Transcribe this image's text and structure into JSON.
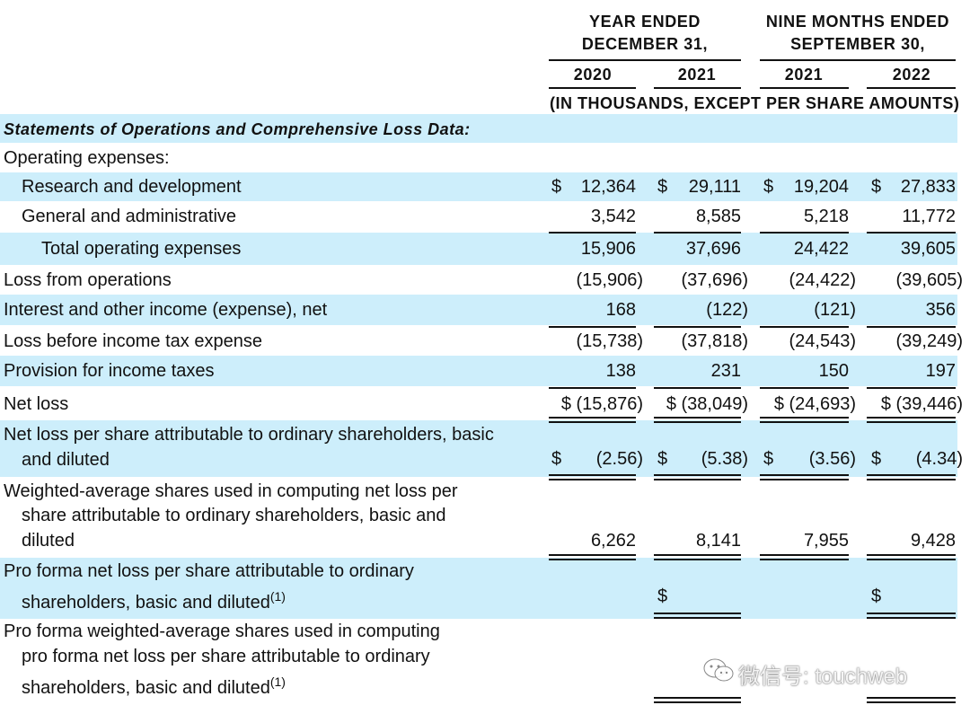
{
  "header": {
    "year_ended": "YEAR ENDED",
    "year_ended_date": "DECEMBER 31,",
    "nine_months": "NINE MONTHS ENDED",
    "nine_months_date": "SEPTEMBER 30,",
    "years": [
      "2020",
      "2021",
      "2021",
      "2022"
    ],
    "units": "(IN THOUSANDS, EXCEPT PER SHARE AMOUNTS)"
  },
  "rows": {
    "section_title": "Statements of Operations and Comprehensive Loss Data:",
    "operating_expenses": "Operating expenses:",
    "rnd": {
      "label": "Research and development",
      "cur": [
        "$",
        "$",
        "$",
        "$"
      ],
      "values": [
        "12,364",
        "29,111",
        "19,204",
        "27,833"
      ]
    },
    "gna": {
      "label": "General and administrative",
      "values": [
        "3,542",
        "8,585",
        "5,218",
        "11,772"
      ]
    },
    "total_opex": {
      "label": "Total operating expenses",
      "values": [
        "15,906",
        "37,696",
        "24,422",
        "39,605"
      ]
    },
    "loss_ops": {
      "label": "Loss from operations",
      "values": [
        "(15,906)",
        "(37,696)",
        "(24,422)",
        "(39,605)"
      ]
    },
    "interest": {
      "label": "Interest and other income (expense), net",
      "values": [
        "168",
        "(122)",
        "(121)",
        "356"
      ]
    },
    "loss_before_tax": {
      "label": "Loss before income tax expense",
      "values": [
        "(15,738)",
        "(37,818)",
        "(24,543)",
        "(39,249)"
      ]
    },
    "provision": {
      "label": "Provision for income taxes",
      "values": [
        "138",
        "231",
        "150",
        "197"
      ]
    },
    "net_loss": {
      "label": "Net loss",
      "values": [
        "$ (15,876)",
        "$ (38,049)",
        "$ (24,693)",
        "$ (39,446)"
      ]
    },
    "eps": {
      "label_line1": "Net loss per share attributable to ordinary shareholders, basic",
      "label_line2": "and diluted",
      "cur": [
        "$",
        "$",
        "$",
        "$"
      ],
      "values": [
        "(2.56)",
        "(5.38)",
        "(3.56)",
        "(4.34)"
      ]
    },
    "wavg": {
      "label_line1": "Weighted-average shares used in computing net loss per",
      "label_line2": "share attributable to ordinary shareholders, basic and",
      "label_line3": "diluted",
      "values": [
        "6,262",
        "8,141",
        "7,955",
        "9,428"
      ]
    },
    "pro_forma_eps": {
      "label_line1": "Pro forma net loss per share attributable to ordinary",
      "label_line2": "shareholders, basic and diluted",
      "footnote": "(1)",
      "cur": [
        "$",
        "$"
      ]
    },
    "pro_forma_wavg": {
      "label_line1": "Pro forma weighted-average shares used in computing",
      "label_line2": "pro forma net loss per share attributable to ordinary",
      "label_line3": "shareholders, basic and diluted",
      "footnote": "(1)"
    }
  },
  "watermark": "微信号: touchweb",
  "colors": {
    "band": "#cdeefb",
    "text": "#111111"
  }
}
